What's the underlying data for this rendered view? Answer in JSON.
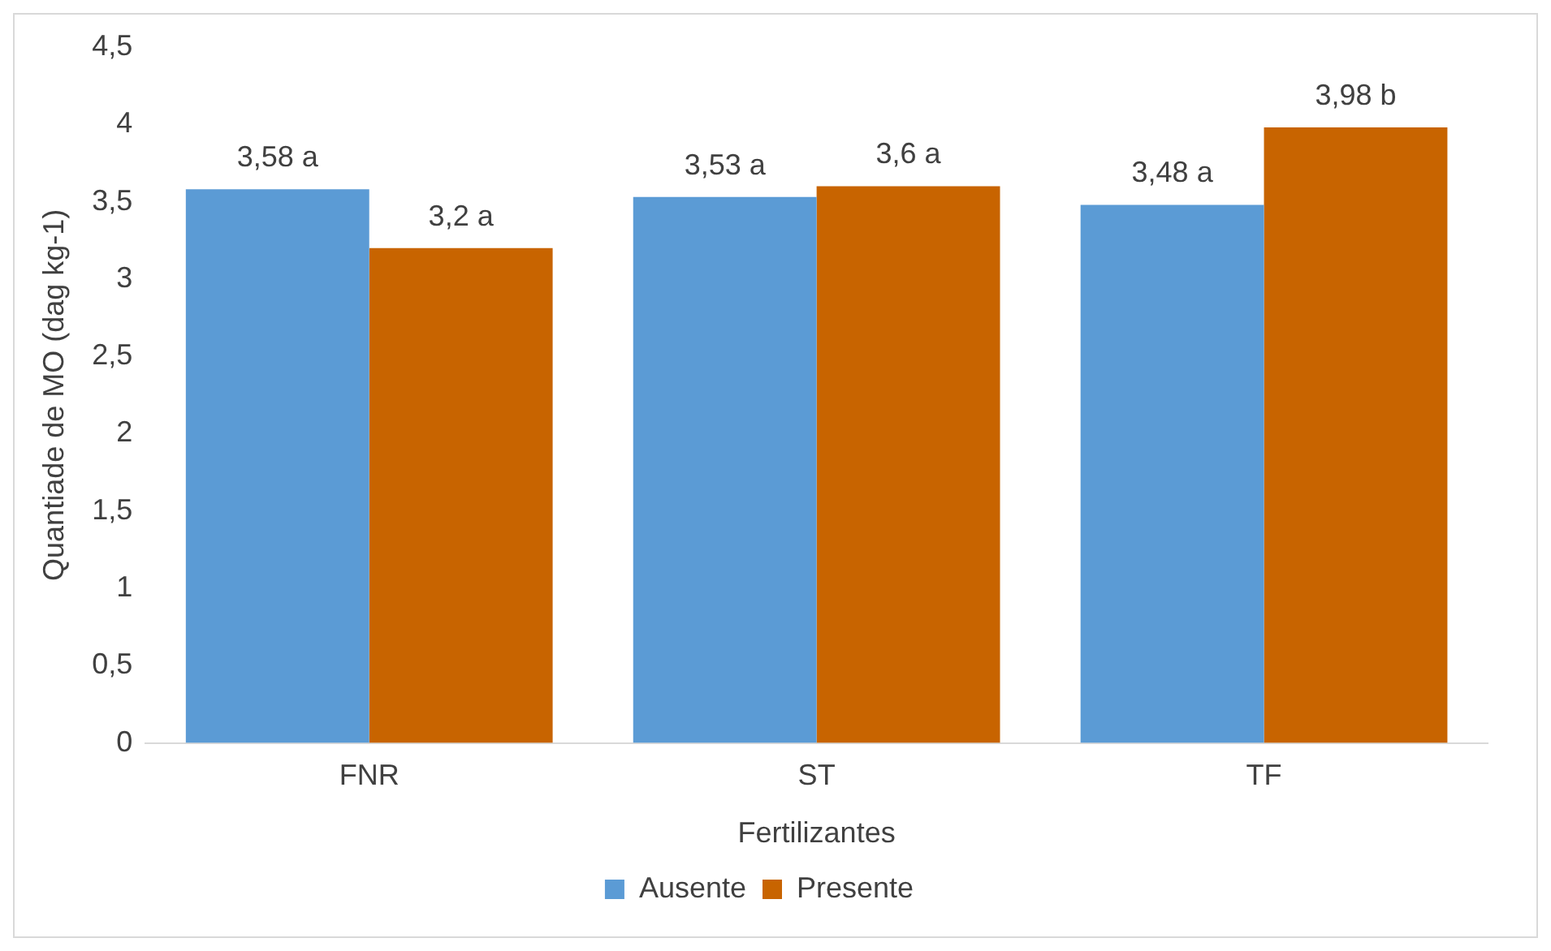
{
  "chart_data": {
    "type": "bar",
    "categories": [
      "FNR",
      "ST",
      "TF"
    ],
    "xlabel": "Fertilizantes",
    "ylabel": "Quantiade de MO (dag kg-1)",
    "series": [
      {
        "name": "Ausente",
        "color": "#5b9bd5",
        "values": [
          3.58,
          3.53,
          3.48
        ],
        "value_labels": [
          "3,58 a",
          "3,53 a",
          "3,48 a"
        ]
      },
      {
        "name": "Presente",
        "color": "#c86400",
        "values": [
          3.2,
          3.6,
          3.98
        ],
        "value_labels": [
          "3,2 a",
          "3,6 a",
          "3,98 b"
        ]
      }
    ],
    "ylim": [
      0,
      4.5
    ],
    "yticks": [
      0,
      {
        "value": 0.5,
        "label": "0,5"
      },
      1,
      {
        "value": 1.5,
        "label": "1,5"
      },
      2,
      {
        "value": 2.5,
        "label": "2,5"
      },
      3,
      {
        "value": 3.5,
        "label": "3,5"
      },
      4,
      {
        "value": 4.5,
        "label": "4,5"
      }
    ],
    "grid": false,
    "legend": "bottom"
  }
}
